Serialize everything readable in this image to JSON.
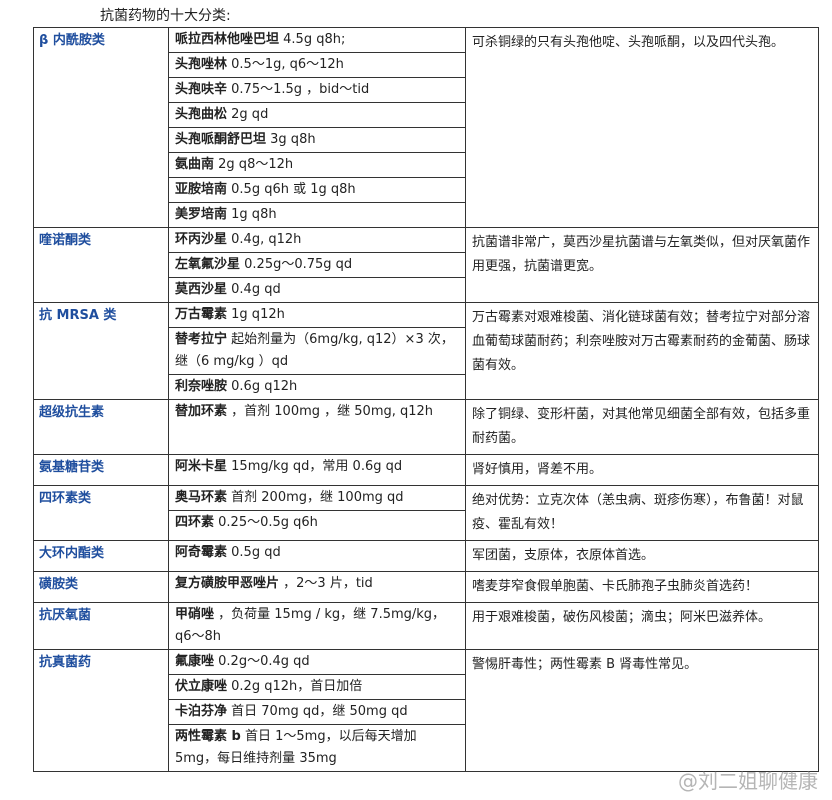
{
  "header": {
    "title": "抗菌药物的十大分类:"
  },
  "table": {
    "rows": [
      {
        "category": "β 内酰胺类",
        "drugs": [
          {
            "name": "哌拉西林他唑巴坦",
            "dose": "4.5g q8h;"
          },
          {
            "name": "头孢唑林",
            "dose": "0.5～1g, q6～12h"
          },
          {
            "name": "头孢呋辛",
            "dose": "0.75～1.5g ，bid～tid"
          },
          {
            "name": "头孢曲松",
            "dose": "2g qd"
          },
          {
            "name": "头孢哌酮舒巴坦",
            "dose": "3g q8h"
          },
          {
            "name": "氨曲南",
            "dose": "2g q8～12h"
          },
          {
            "name": "亚胺培南",
            "dose": "0.5g q6h 或 1g q8h"
          },
          {
            "name": "美罗培南",
            "dose": "1g q8h"
          }
        ],
        "note": "可杀铜绿的只有头孢他啶、头孢哌酮，以及四代头孢。"
      },
      {
        "category": "喹诺酮类",
        "drugs": [
          {
            "name": "环丙沙星",
            "dose": "0.4g, q12h"
          },
          {
            "name": "左氧氟沙星",
            "dose": "0.25g～0.75g qd"
          },
          {
            "name": "莫西沙星",
            "dose": "0.4g qd"
          }
        ],
        "note": "抗菌谱非常广，莫西沙星抗菌谱与左氧类似，但对厌氧菌作用更强，抗菌谱更宽。"
      },
      {
        "category": "抗 MRSA 类",
        "drugs": [
          {
            "name": "万古霉素",
            "dose": "1g q12h"
          },
          {
            "name": "替考拉宁",
            "dose": "起始剂量为（6mg/kg, q12）×3 次，继（6 mg/kg ）qd"
          },
          {
            "name": "利奈唑胺",
            "dose": "0.6g q12h"
          }
        ],
        "note": "万古霉素对艰难梭菌、消化链球菌有效；替考拉宁对部分溶血葡萄球菌耐药；利奈唑胺对万古霉素耐药的金葡菌、肠球菌有效。"
      },
      {
        "category": "超级抗生素",
        "drugs": [
          {
            "name": "替加环素",
            "dose": "，首剂 100mg ，继 50mg, q12h"
          }
        ],
        "note": "除了铜绿、变形杆菌，对其他常见细菌全部有效，包括多重耐药菌。"
      },
      {
        "category": "氨基糖苷类",
        "drugs": [
          {
            "name": "阿米卡星",
            "dose": "15mg/kg qd，常用 0.6g qd"
          }
        ],
        "note": "肾好慎用，肾差不用。"
      },
      {
        "category": "四环素类",
        "drugs": [
          {
            "name": "奥马环素",
            "dose": "首剂 200mg，继 100mg qd"
          },
          {
            "name": "四环素",
            "dose": "0.25～0.5g q6h"
          }
        ],
        "note": "绝对优势：立克次体（恙虫病、斑疹伤寒），布鲁菌！对鼠疫、霍乱有效！"
      },
      {
        "category": "大环内酯类",
        "drugs": [
          {
            "name": "阿奇霉素",
            "dose": "0.5g qd"
          }
        ],
        "note": "军团菌，支原体，衣原体首选。"
      },
      {
        "category": "磺胺类",
        "drugs": [
          {
            "name": "复方磺胺甲恶唑片",
            "dose": "，2～3 片，tid"
          }
        ],
        "note": "嗜麦芽窄食假单胞菌、卡氏肺孢子虫肺炎首选药！"
      },
      {
        "category": "抗厌氧菌",
        "drugs": [
          {
            "name": "甲硝唑",
            "dose": "，负荷量 15mg / kg，继 7.5mg/kg，q6～8h"
          }
        ],
        "note": "用于艰难梭菌，破伤风梭菌；滴虫；阿米巴滋养体。"
      },
      {
        "category": "抗真菌药",
        "drugs": [
          {
            "name": "氟康唑",
            "dose": "0.2g～0.4g qd"
          },
          {
            "name": "伏立康唑",
            "dose": "0.2g q12h，首日加倍"
          },
          {
            "name": "卡泊芬净",
            "dose": "首日 70mg qd，继 50mg qd"
          },
          {
            "name": "两性霉素 b",
            "dose": "首日 1～5mg，以后每天增加 5mg，每日维持剂量 35mg"
          }
        ],
        "note": "警惕肝毒性；两性霉素 B 肾毒性常见。"
      }
    ]
  },
  "watermark": "@刘二姐聊健康"
}
